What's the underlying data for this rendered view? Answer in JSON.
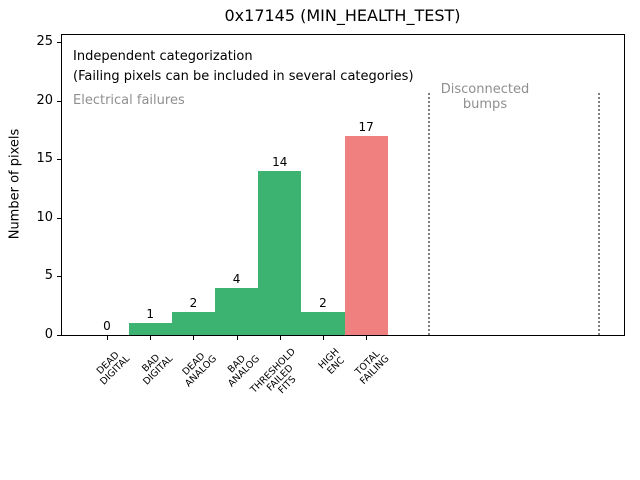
{
  "chart_data": {
    "type": "bar",
    "title": "0x17145 (MIN_HEALTH_TEST)",
    "xlabel": "",
    "ylabel": "Number of pixels",
    "categories": [
      "DEAD\nDIGITAL",
      "BAD\nDIGITAL",
      "DEAD\nANALOG",
      "BAD\nANALOG",
      "THRESHOLD\nFAILED\nFITS",
      "HIGH\nENC",
      "TOTAL\nFAILING"
    ],
    "values": [
      0,
      1,
      2,
      4,
      14,
      2,
      17
    ],
    "bar_value_labels": [
      "0",
      "1",
      "2",
      "4",
      "14",
      "2",
      "17"
    ],
    "bar_colors": [
      "#3cb371",
      "#3cb371",
      "#3cb371",
      "#3cb371",
      "#3cb371",
      "#3cb371",
      "#f08080"
    ],
    "yticks": [
      0,
      5,
      10,
      15,
      20,
      25
    ],
    "ylim": [
      0,
      25.7
    ],
    "grid": false,
    "legend_position": "none",
    "annotations": {
      "independent": "Independent categorization",
      "note": "(Failing pixels can be included in several categories)",
      "electrical_section": "Electrical failures",
      "disconnected_section": "Disconnected\nbumps"
    },
    "colors": {
      "electrical_bar_green": "#3cb371",
      "total_bar_red": "#f08080",
      "section_text_gray": "#8f8f8f",
      "separator_gray": "#7f7f7f"
    }
  }
}
